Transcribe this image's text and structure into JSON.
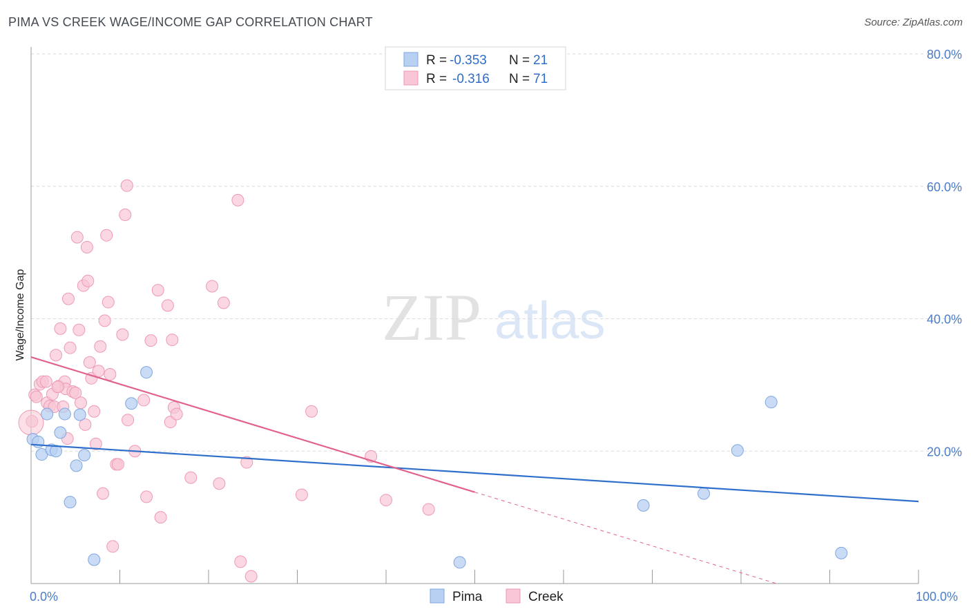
{
  "title": "PIMA VS CREEK WAGE/INCOME GAP CORRELATION CHART",
  "source": "Source: ZipAtlas.com",
  "watermark": {
    "zip": "ZIP",
    "atlas": "atlas"
  },
  "legend": {
    "r_label": "R =",
    "n_label": "N =",
    "pima": {
      "r": "-0.353",
      "n": "21"
    },
    "creek": {
      "r": "-0.316",
      "n": "71"
    }
  },
  "colors": {
    "pima_fill": "#b8d0f2",
    "pima_stroke": "#7fa6e0",
    "pima_line": "#2f6fcc",
    "creek_fill": "#f8c6d6",
    "creek_stroke": "#ee9ab4",
    "creek_line": "#e2628e",
    "grid": "#d9d9d9",
    "axis_label": "#4a7cc8"
  },
  "chart_data": {
    "type": "scatter",
    "title": "PIMA VS CREEK WAGE/INCOME GAP CORRELATION CHART",
    "xlabel": "",
    "ylabel": "Wage/Income Gap",
    "xlim": [
      0,
      100
    ],
    "ylim": [
      0,
      80
    ],
    "x_tick_labels": [
      "0.0%",
      "100.0%"
    ],
    "y_tick_labels": [
      "20.0%",
      "40.0%",
      "60.0%",
      "80.0%"
    ],
    "y_ticks": [
      20,
      40,
      60,
      80
    ],
    "series": [
      {
        "name": "Pima",
        "points": [
          [
            0.2,
            21.8
          ],
          [
            0.8,
            21.4
          ],
          [
            1.2,
            19.5
          ],
          [
            1.8,
            25.6
          ],
          [
            2.3,
            20.2
          ],
          [
            2.8,
            20.0
          ],
          [
            3.3,
            22.8
          ],
          [
            3.8,
            25.6
          ],
          [
            4.4,
            12.3
          ],
          [
            5.1,
            17.8
          ],
          [
            5.5,
            25.5
          ],
          [
            6.0,
            19.4
          ],
          [
            7.1,
            3.6
          ],
          [
            11.3,
            27.2
          ],
          [
            13.0,
            31.9
          ],
          [
            69.0,
            11.8
          ],
          [
            75.8,
            13.6
          ],
          [
            79.6,
            20.1
          ],
          [
            83.4,
            27.4
          ],
          [
            91.3,
            4.6
          ],
          [
            48.3,
            3.2
          ]
        ],
        "trend": {
          "x": [
            0,
            100
          ],
          "y": [
            21.0,
            12.4
          ]
        }
      },
      {
        "name": "Creek",
        "points": [
          [
            0.1,
            24.5
          ],
          [
            0.4,
            28.5
          ],
          [
            0.6,
            28.2
          ],
          [
            1.0,
            30.1
          ],
          [
            1.3,
            30.5
          ],
          [
            1.7,
            30.5
          ],
          [
            1.8,
            27.3
          ],
          [
            2.1,
            26.8
          ],
          [
            2.4,
            28.6
          ],
          [
            2.6,
            26.7
          ],
          [
            2.8,
            34.5
          ],
          [
            3.1,
            29.8
          ],
          [
            3.3,
            38.5
          ],
          [
            3.6,
            26.7
          ],
          [
            3.8,
            30.5
          ],
          [
            3.9,
            29.4
          ],
          [
            4.1,
            21.9
          ],
          [
            4.2,
            43.0
          ],
          [
            4.4,
            35.6
          ],
          [
            4.7,
            29.0
          ],
          [
            5.0,
            28.8
          ],
          [
            5.2,
            52.3
          ],
          [
            5.4,
            38.3
          ],
          [
            5.6,
            27.3
          ],
          [
            5.9,
            45.0
          ],
          [
            6.1,
            24.0
          ],
          [
            6.3,
            50.8
          ],
          [
            6.4,
            45.7
          ],
          [
            6.6,
            33.4
          ],
          [
            6.8,
            31.0
          ],
          [
            7.1,
            26.0
          ],
          [
            7.3,
            21.1
          ],
          [
            7.6,
            32.1
          ],
          [
            7.8,
            35.8
          ],
          [
            8.1,
            13.6
          ],
          [
            8.3,
            39.7
          ],
          [
            8.5,
            52.6
          ],
          [
            8.7,
            42.5
          ],
          [
            8.9,
            31.6
          ],
          [
            9.2,
            5.6
          ],
          [
            9.6,
            18.0
          ],
          [
            9.8,
            18.0
          ],
          [
            10.3,
            37.6
          ],
          [
            10.6,
            55.7
          ],
          [
            10.8,
            60.1
          ],
          [
            10.9,
            24.7
          ],
          [
            11.7,
            20.0
          ],
          [
            12.7,
            27.7
          ],
          [
            13.0,
            13.1
          ],
          [
            13.5,
            36.7
          ],
          [
            14.3,
            44.3
          ],
          [
            14.6,
            10.0
          ],
          [
            15.4,
            42.0
          ],
          [
            15.7,
            24.4
          ],
          [
            15.9,
            36.8
          ],
          [
            16.1,
            26.6
          ],
          [
            16.4,
            25.6
          ],
          [
            18.0,
            16.0
          ],
          [
            20.4,
            44.9
          ],
          [
            21.2,
            15.1
          ],
          [
            21.7,
            42.4
          ],
          [
            23.3,
            57.9
          ],
          [
            23.6,
            3.3
          ],
          [
            24.3,
            18.3
          ],
          [
            24.8,
            1.1
          ],
          [
            30.5,
            13.4
          ],
          [
            31.6,
            26.0
          ],
          [
            38.3,
            19.2
          ],
          [
            40.0,
            12.6
          ],
          [
            44.8,
            11.2
          ],
          [
            3.0,
            29.7
          ]
        ],
        "trend": {
          "x": [
            0,
            50
          ],
          "y": [
            34.2,
            13.8
          ]
        },
        "trend_dashed": {
          "x": [
            50,
            84
          ],
          "y": [
            13.8,
            0
          ]
        }
      }
    ],
    "legend_position": "top-center",
    "bottom_legend": [
      "Pima",
      "Creek"
    ],
    "grid": true
  }
}
